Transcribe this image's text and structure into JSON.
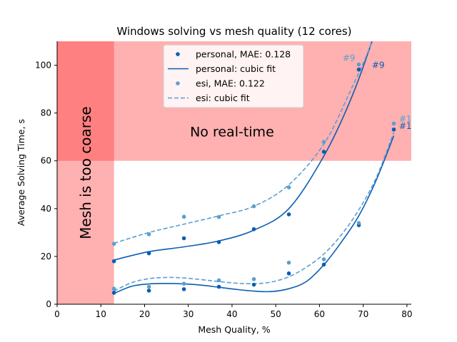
{
  "colors": {
    "personal": "#0b5db3",
    "esi": "#5b9fce",
    "no_realtime_region": "#ffb0b0",
    "too_coarse_region": "#ffb0b0",
    "overlap_region": "#ff8080",
    "axis": "#000000"
  },
  "chart_data": {
    "type": "scatter",
    "title": "Windows solving vs mesh quality (12 cores)",
    "xlabel": "Mesh Quality, %",
    "ylabel": "Average Solving Time, s",
    "xlim": [
      0,
      81
    ],
    "ylim": [
      0,
      110
    ],
    "xticks": [
      0,
      10,
      20,
      30,
      40,
      50,
      60,
      70,
      80
    ],
    "yticks": [
      0,
      20,
      40,
      60,
      80,
      100
    ],
    "x_tick_labels": [
      "0",
      "10",
      "20",
      "30",
      "40",
      "50",
      "60",
      "70",
      "80"
    ],
    "y_tick_labels": [
      "0",
      "20",
      "40",
      "60",
      "80",
      "100"
    ],
    "grid": false,
    "legend_position": "top-center",
    "regions": [
      {
        "name": "no-realtime",
        "x_from": 0,
        "x_to": 81,
        "y_from": 60,
        "y_to": 110,
        "label": "No real-time",
        "label_x": 40,
        "label_y": 72
      },
      {
        "name": "too-coarse",
        "x_from": 0,
        "x_to": 13,
        "y_from": 0,
        "y_to": 110,
        "label": "Mesh is too coarse",
        "label_x": 6.5,
        "label_y": 55
      }
    ],
    "series": [
      {
        "name": "personal, MAE: 0.128",
        "key": "personal",
        "upper": {
          "x": [
            13,
            21,
            29,
            37,
            45,
            53,
            61,
            69,
            77
          ],
          "y": [
            18,
            21.3,
            27.6,
            26,
            31.4,
            37.6,
            63.8,
            98.2,
            120
          ]
        },
        "lower": {
          "x": [
            13,
            21,
            29,
            37,
            45,
            53,
            61,
            69,
            77
          ],
          "y": [
            4.8,
            5.7,
            6.3,
            7.3,
            8.2,
            12.9,
            16.6,
            33.1,
            73.1
          ]
        },
        "fit_name": "personal: cubic fit",
        "upper_fit": {
          "x": [
            13,
            21,
            29,
            37,
            45,
            53,
            61,
            67,
            72,
            77
          ],
          "y": [
            18.5,
            22,
            24,
            26.5,
            31,
            40,
            62,
            85,
            110,
            140
          ]
        },
        "lower_fit": {
          "x": [
            13,
            17,
            21,
            25,
            29,
            33,
            37,
            41,
            45,
            49,
            53,
            57,
            61,
            65,
            69,
            73,
            77
          ],
          "y": [
            4.5,
            7.5,
            8.5,
            8.7,
            8.5,
            8,
            7.1,
            6.2,
            5.5,
            5.3,
            6.5,
            9.5,
            16.5,
            26,
            37,
            52,
            70.5
          ]
        }
      },
      {
        "name": "esi, MAE: 0.122",
        "key": "esi",
        "upper": {
          "x": [
            13,
            21,
            29,
            37,
            45,
            53,
            61,
            69,
            77
          ],
          "y": [
            25.3,
            29.3,
            36.6,
            36.5,
            41,
            48.9,
            67.9,
            100.3,
            120
          ]
        },
        "lower": {
          "x": [
            13,
            21,
            29,
            37,
            45,
            53,
            61,
            69,
            77
          ],
          "y": [
            6.5,
            7.3,
            8.6,
            10,
            10.5,
            17.4,
            18.8,
            34,
            75.6
          ]
        },
        "fit_name": "esi: cubic fit",
        "upper_fit": {
          "x": [
            13,
            21,
            29,
            37,
            45,
            53,
            61,
            67,
            72,
            77
          ],
          "y": [
            25.5,
            30,
            33.5,
            37,
            41,
            50,
            67,
            89,
            110,
            140
          ]
        },
        "lower_fit": {
          "x": [
            13,
            17,
            21,
            25,
            29,
            33,
            37,
            41,
            45,
            49,
            53,
            57,
            61,
            65,
            69,
            73,
            77
          ],
          "y": [
            5.5,
            9,
            10.7,
            11.2,
            11,
            10.3,
            9.5,
            8.8,
            8.6,
            9.3,
            11.5,
            15.5,
            21,
            29,
            39.5,
            53,
            72
          ]
        }
      }
    ],
    "annotations": [
      {
        "text": "#9",
        "series": "esi",
        "x": 65.3,
        "y": 103
      },
      {
        "text": "#9",
        "series": "personal",
        "x": 72,
        "y": 100
      },
      {
        "text": "#1",
        "series": "esi",
        "x": 78.2,
        "y": 77.5
      },
      {
        "text": "#1",
        "series": "personal",
        "x": 78.2,
        "y": 74.5
      }
    ]
  }
}
